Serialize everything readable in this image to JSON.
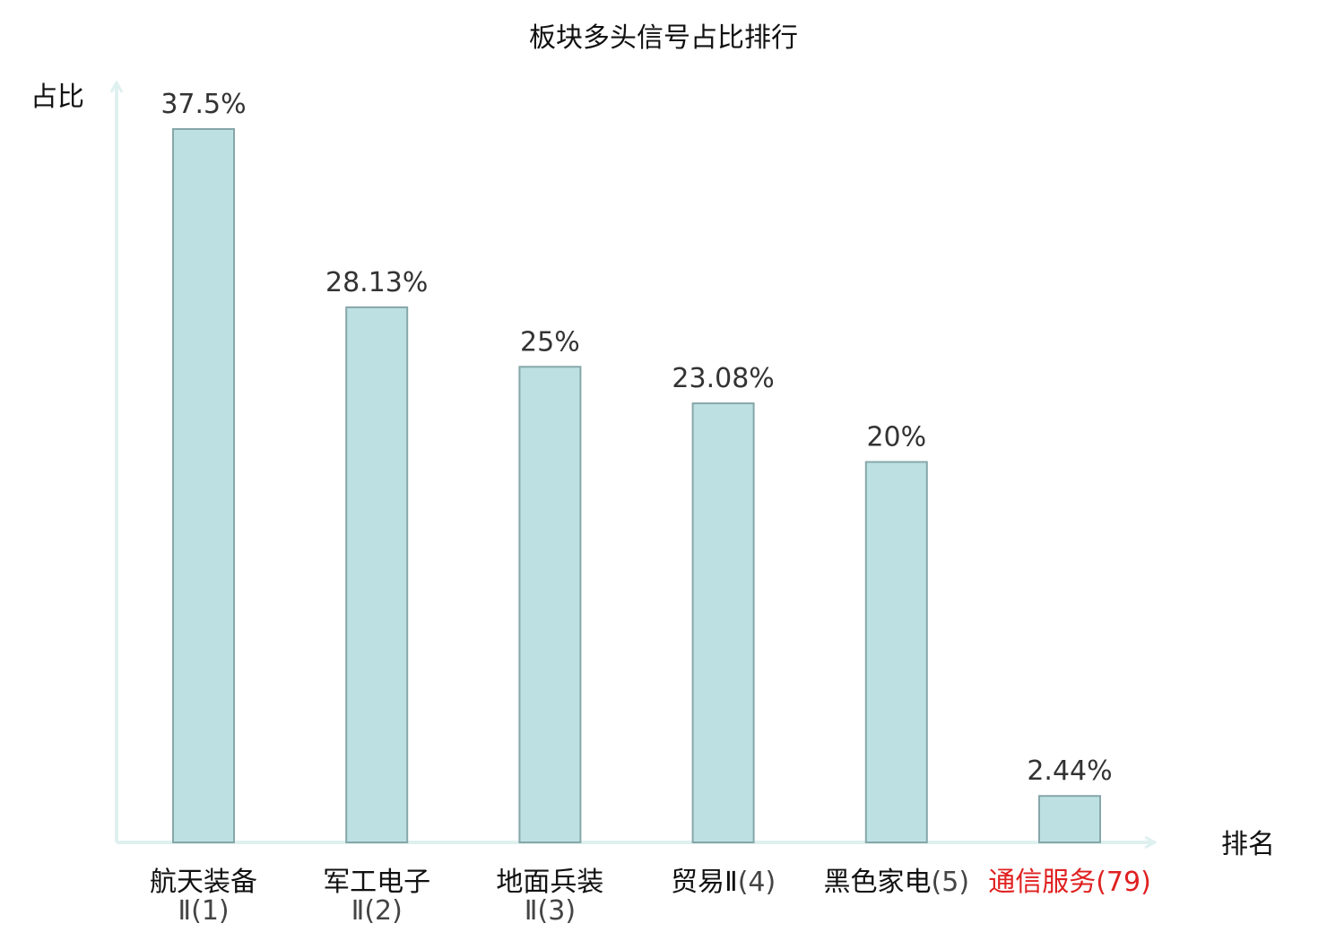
{
  "chart_data": {
    "type": "bar",
    "title": "板块多头信号占比排行",
    "xlabel": "排名",
    "ylabel": "占比",
    "categories": [
      {
        "name": "航天装备Ⅱ",
        "rank": "(1)"
      },
      {
        "name": "军工电子Ⅱ",
        "rank": "(2)"
      },
      {
        "name": "地面兵装Ⅱ",
        "rank": "(3)"
      },
      {
        "name": "贸易Ⅱ",
        "rank": "(4)"
      },
      {
        "name": "黑色家电",
        "rank": "(5)"
      },
      {
        "name": "通信服务",
        "rank": "(79)"
      }
    ],
    "values": [
      37.5,
      28.13,
      25,
      23.08,
      20,
      2.44
    ],
    "value_labels": [
      "37.5%",
      "28.13%",
      "25%",
      "23.08%",
      "20%",
      "2.44%"
    ],
    "highlight_index": 5,
    "ylim": [
      0,
      37.5
    ],
    "grid": false,
    "colors": {
      "bar_fill": "#bde0e3",
      "bar_stroke": "#86a7a9",
      "axis": "#dff1ef",
      "highlight": "#e02020"
    }
  }
}
